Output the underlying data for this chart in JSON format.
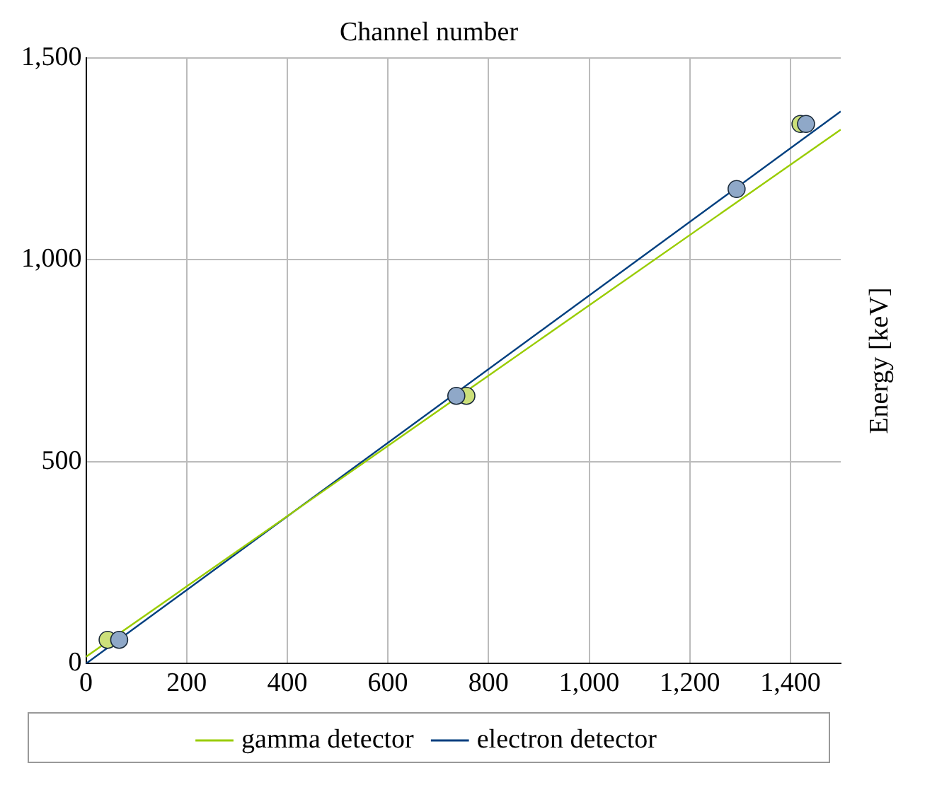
{
  "chart_data": {
    "type": "line",
    "title": "Channel number",
    "ylabel": "Energy [keV]",
    "series": [
      {
        "name": "gamma detector",
        "color": "#99cc00",
        "x": [
          0,
          1500
        ],
        "values": [
          17,
          1322
        ],
        "marker": "none"
      },
      {
        "name": "electron detector",
        "color": "#003f7f",
        "x": [
          0,
          1500
        ],
        "values": [
          0,
          1367
        ],
        "marker": "none"
      },
      {
        "type": "scatter",
        "color": "#cce07a",
        "x": [
          43,
          756,
          1420
        ],
        "values": [
          59,
          663,
          1336
        ],
        "marker": "circle"
      },
      {
        "type": "scatter",
        "color": "#8fa8c8",
        "x": [
          66,
          736,
          1293,
          1431
        ],
        "values": [
          59,
          663,
          1175,
          1336
        ],
        "marker": "circle"
      }
    ],
    "xlim": [
      0,
      1500
    ],
    "xticks": [
      0,
      200,
      400,
      600,
      800,
      {
        "value": 1000,
        "label": "1,000"
      },
      {
        "value": 1200,
        "label": "1,200"
      },
      {
        "value": 1400,
        "label": "1,400"
      }
    ],
    "ylim": [
      0,
      1500
    ],
    "yticks": [
      0,
      500,
      {
        "value": 1000,
        "label": "1,000"
      },
      {
        "value": 1500,
        "label": "1,500"
      }
    ],
    "grid": true,
    "legend": "bottom"
  }
}
